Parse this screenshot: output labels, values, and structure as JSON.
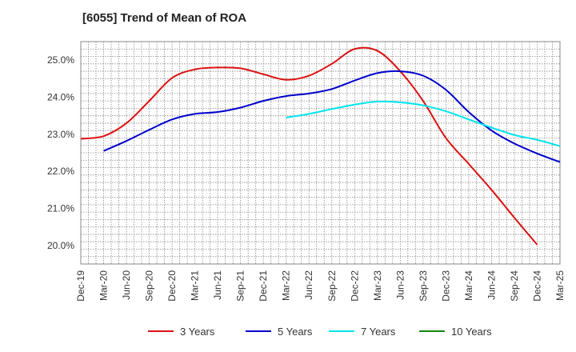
{
  "chart_data": {
    "type": "line",
    "title": "[6055]  Trend of Mean of ROA",
    "xlabel": "",
    "ylabel": "",
    "ylim": [
      19.5,
      25.5
    ],
    "yticks": [
      20,
      21,
      22,
      23,
      24,
      25
    ],
    "ytick_labels": [
      "20.0%",
      "21.0%",
      "22.0%",
      "23.0%",
      "24.0%",
      "25.0%"
    ],
    "x_labels": [
      "Dec-19",
      "Mar-20",
      "Jun-20",
      "Sep-20",
      "Dec-20",
      "Mar-21",
      "Jun-21",
      "Sep-21",
      "Dec-21",
      "Mar-22",
      "Jun-22",
      "Sep-22",
      "Dec-22",
      "Mar-23",
      "Jun-23",
      "Sep-23",
      "Dec-23",
      "Mar-24",
      "Jun-24",
      "Sep-24",
      "Dec-24",
      "Mar-25"
    ],
    "grid": true,
    "legend_position": "bottom",
    "series": [
      {
        "name": "3 Years",
        "color": "#dd1111",
        "start_index": 0,
        "values": [
          22.88,
          22.95,
          23.3,
          23.9,
          24.52,
          24.75,
          24.8,
          24.78,
          24.62,
          24.47,
          24.58,
          24.9,
          25.3,
          25.25,
          24.7,
          23.9,
          22.9,
          22.2,
          21.5,
          20.75,
          20.02
        ]
      },
      {
        "name": "5 Years",
        "color": "#0000cc",
        "start_index": 1,
        "values": [
          22.55,
          22.82,
          23.12,
          23.4,
          23.55,
          23.6,
          23.72,
          23.9,
          24.03,
          24.1,
          24.22,
          24.45,
          24.65,
          24.7,
          24.58,
          24.2,
          23.6,
          23.1,
          22.75,
          22.48,
          22.25
        ]
      },
      {
        "name": "7 Years",
        "color": "#00e5ee",
        "start_index": 9,
        "values": [
          23.45,
          23.55,
          23.68,
          23.8,
          23.88,
          23.86,
          23.78,
          23.62,
          23.4,
          23.18,
          22.98,
          22.85,
          22.68
        ]
      },
      {
        "name": "10 Years",
        "color": "#118811",
        "start_index": 0,
        "values": []
      }
    ]
  }
}
